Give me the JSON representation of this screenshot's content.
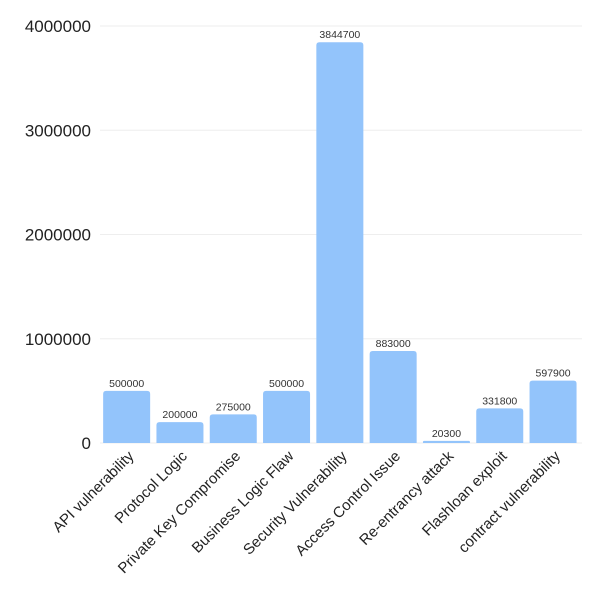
{
  "chart_data": {
    "type": "bar",
    "categories": [
      "API vulnerability",
      "Protocol Logic",
      "Private Key Compromise",
      "Business Logic Flaw",
      "Security Vulnerability",
      "Access Control Issue",
      "Re-entrancy attack",
      "Flashloan exploit",
      "contract vulnerability"
    ],
    "values": [
      500000,
      200000,
      275000,
      500000,
      3844700,
      883000,
      20300,
      331800,
      597900
    ],
    "data_labels": [
      "500000",
      "200000",
      "275000",
      "500000",
      "3844700",
      "883000",
      "20300",
      "331800",
      "597900"
    ],
    "ylim": [
      0,
      4000000
    ],
    "yticks": [
      0,
      1000000,
      2000000,
      3000000,
      4000000
    ],
    "ytick_labels": [
      "0",
      "1000000",
      "2000000",
      "3000000",
      "4000000"
    ],
    "title": "",
    "xlabel": "",
    "ylabel": "",
    "grid": true,
    "bar_color": "#93c4fb",
    "grid_color": "#eeeeee",
    "text_color": "#222222"
  }
}
